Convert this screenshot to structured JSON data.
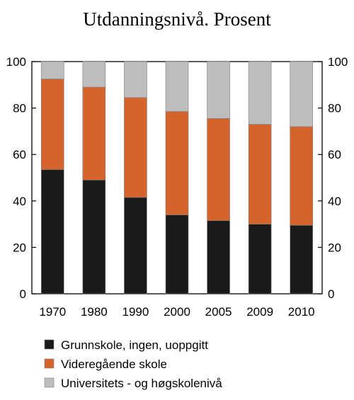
{
  "chart_data": {
    "type": "bar",
    "stacked": true,
    "title": "Utdanningsnivå. Prosent",
    "categories": [
      "1970",
      "1980",
      "1990",
      "2000",
      "2005",
      "2009",
      "2010"
    ],
    "series": [
      {
        "name": "Grunnskole, ingen, uoppgitt",
        "color": "#1a1a1a",
        "values": [
          53.5,
          49,
          41.5,
          34,
          31.5,
          30,
          29.5
        ]
      },
      {
        "name": "Videregående skole",
        "color": "#d4642c",
        "values": [
          39,
          40,
          43,
          44.5,
          44,
          43,
          42.5
        ]
      },
      {
        "name": "Universitets - og høgskolenivå",
        "color": "#bdbdbd",
        "values": [
          7.5,
          11,
          15.5,
          21.5,
          24.5,
          27,
          28
        ]
      }
    ],
    "ylim": [
      0,
      100
    ],
    "yticks": [
      0,
      20,
      40,
      60,
      80,
      100
    ],
    "xlabel": "",
    "ylabel": "",
    "grid": false,
    "legend_position": "bottom"
  }
}
